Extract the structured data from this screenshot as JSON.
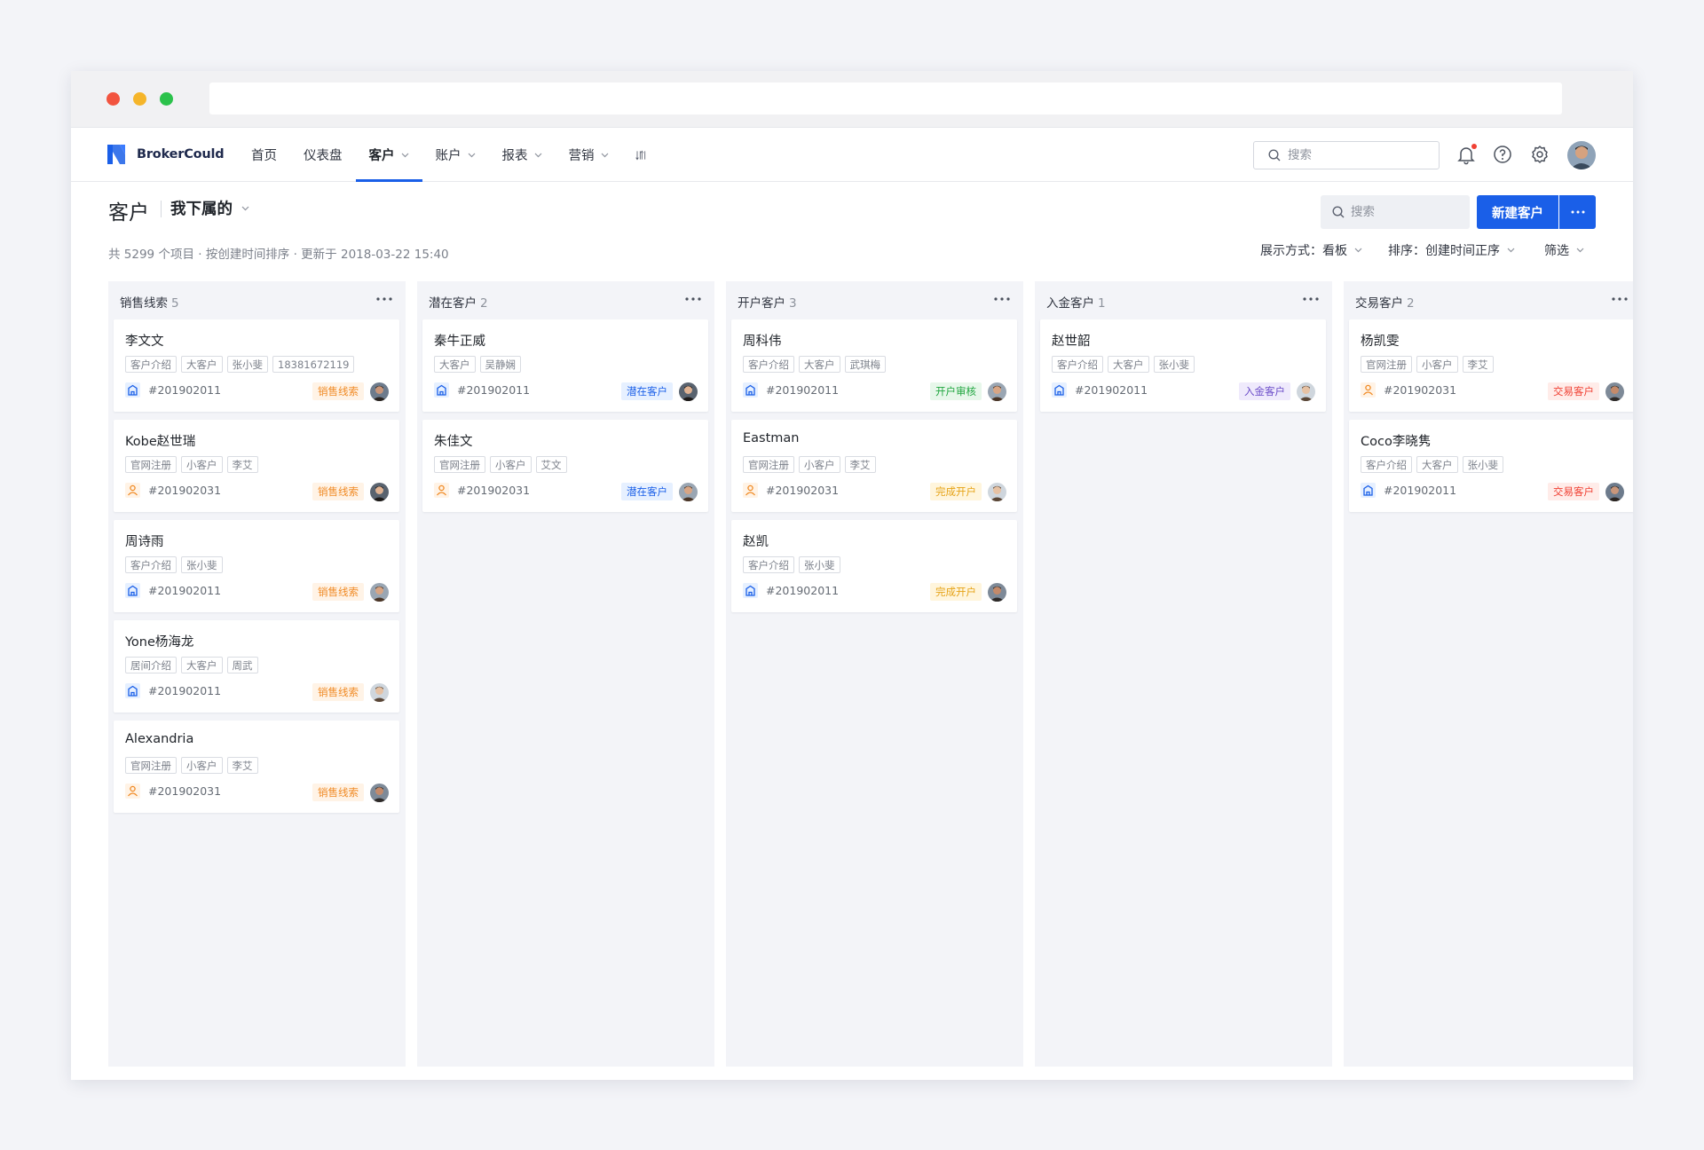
{
  "brand": {
    "name": "BrokerCould"
  },
  "nav": {
    "items": [
      {
        "label": "首页"
      },
      {
        "label": "仪表盘"
      },
      {
        "label": "客户"
      },
      {
        "label": "账户"
      },
      {
        "label": "报表"
      },
      {
        "label": "营销"
      }
    ],
    "active": "客户",
    "search_placeholder": "搜索",
    "notification_unread": true
  },
  "page": {
    "title": "客户",
    "view_filter": "我下属的",
    "subtitle": "共 5299 个项目 · 按创建时间排序 · 更新于 2018-03-22 15:40",
    "search_placeholder": "搜索",
    "new_button": "新建客户",
    "display_mode": "展示方式：看板",
    "sort": "排序：创建时间正序",
    "filter": "筛选"
  },
  "colors": {
    "primary": "#1a5fe8",
    "status_sales": "#f08a24",
    "status_potential": "#1a5fe8",
    "status_review": "#21a640",
    "status_done": "#e6a317",
    "status_deposit": "#6a4bc8",
    "status_trade": "#f04134"
  },
  "columns": [
    {
      "title": "销售线索",
      "count": "5",
      "cards": [
        {
          "name": "李文文",
          "tags": [
            "客户介绍",
            "大客户",
            "张小斐",
            "18381672119"
          ],
          "icon": "building-icon",
          "id": "#201902011",
          "status": "销售线索",
          "status_class": "st-sales"
        },
        {
          "name": "Kobe赵世瑞",
          "tags": [
            "官网注册",
            "小客户",
            "李艾"
          ],
          "icon": "person-icon",
          "id": "#201902031",
          "status": "销售线索",
          "status_class": "st-sales"
        },
        {
          "name": "周诗雨",
          "tags": [
            "客户介绍",
            "张小斐"
          ],
          "icon": "building-icon",
          "id": "#201902011",
          "status": "销售线索",
          "status_class": "st-sales"
        },
        {
          "name": "Yone杨海龙",
          "tags": [
            "居间介绍",
            "大客户",
            "周武"
          ],
          "icon": "building-icon",
          "id": "#201902011",
          "status": "销售线索",
          "status_class": "st-sales"
        },
        {
          "name": "Alexandria",
          "tags": [
            "官网注册",
            "小客户",
            "李艾"
          ],
          "icon": "person-icon",
          "id": "#201902031",
          "status": "销售线索",
          "status_class": "st-sales"
        }
      ]
    },
    {
      "title": "潜在客户",
      "count": "2",
      "cards": [
        {
          "name": "秦牛正威",
          "tags": [
            "大客户",
            "吴静娴"
          ],
          "icon": "building-icon",
          "id": "#201902011",
          "status": "潜在客户",
          "status_class": "st-pot"
        },
        {
          "name": "朱佳文",
          "tags": [
            "官网注册",
            "小客户",
            "艾文"
          ],
          "icon": "person-icon",
          "id": "#201902031",
          "status": "潜在客户",
          "status_class": "st-pot"
        }
      ]
    },
    {
      "title": "开户客户",
      "count": "3",
      "cards": [
        {
          "name": "周科伟",
          "tags": [
            "客户介绍",
            "大客户",
            "武琪梅"
          ],
          "icon": "building-icon",
          "id": "#201902011",
          "status": "开户审核",
          "status_class": "st-review"
        },
        {
          "name": "Eastman",
          "tags": [
            "官网注册",
            "小客户",
            "李艾"
          ],
          "icon": "person-icon",
          "id": "#201902031",
          "status": "完成开户",
          "status_class": "st-done"
        },
        {
          "name": "赵凯",
          "tags": [
            "客户介绍",
            "张小斐"
          ],
          "icon": "building-icon",
          "id": "#201902011",
          "status": "完成开户",
          "status_class": "st-done"
        }
      ]
    },
    {
      "title": "入金客户",
      "count": "1",
      "cards": [
        {
          "name": "赵世韶",
          "tags": [
            "客户介绍",
            "大客户",
            "张小斐"
          ],
          "icon": "building-icon",
          "id": "#201902011",
          "status": "入金客户",
          "status_class": "st-deposit"
        }
      ]
    },
    {
      "title": "交易客户",
      "count": "2",
      "cards": [
        {
          "name": "杨凯雯",
          "tags": [
            "官网注册",
            "小客户",
            "李艾"
          ],
          "icon": "person-icon",
          "id": "#201902031",
          "status": "交易客户",
          "status_class": "st-trade"
        },
        {
          "name": "Coco李晓隽",
          "tags": [
            "客户介绍",
            "大客户",
            "张小斐"
          ],
          "icon": "building-icon",
          "id": "#201902011",
          "status": "交易客户",
          "status_class": "st-trade"
        }
      ]
    }
  ]
}
